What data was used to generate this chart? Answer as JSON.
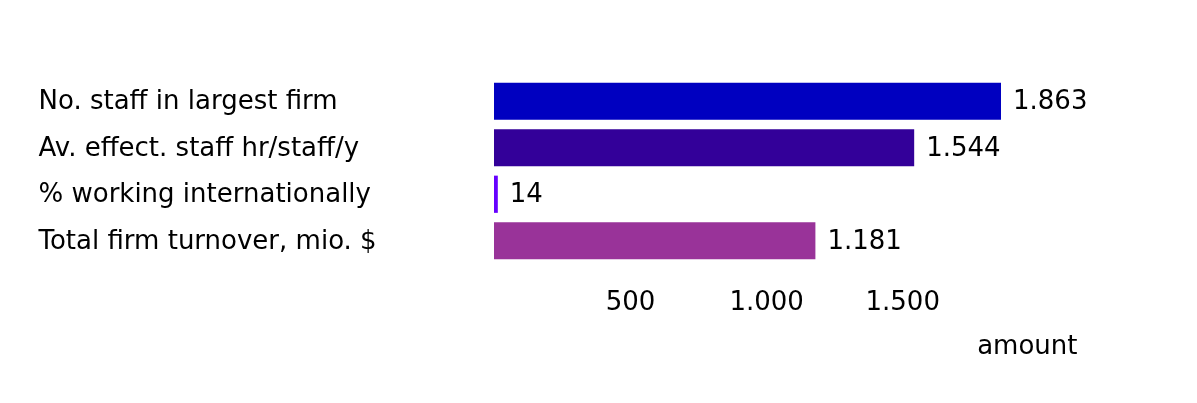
{
  "chart_data": {
    "type": "bar",
    "orientation": "horizontal",
    "xlabel": "amount",
    "categories": [
      "No. staff in largest firm",
      "Av. effect. staff hr/staff/y",
      "% working internationally",
      "Total firm turnover, mio. $"
    ],
    "values": [
      1863,
      1544,
      14,
      1181
    ],
    "colors": [
      "#0000c0",
      "#330099",
      "#6600ff",
      "#993399"
    ],
    "value_labels": [
      "1.863",
      "1.544",
      "14",
      "1.181"
    ],
    "xlim": [
      0,
      1863
    ],
    "xticks": [
      {
        "value": 500,
        "label": "500"
      },
      {
        "value": 1000,
        "label": "1.000"
      },
      {
        "value": 1500,
        "label": "1.500"
      }
    ],
    "grid": false,
    "legend": false
  }
}
